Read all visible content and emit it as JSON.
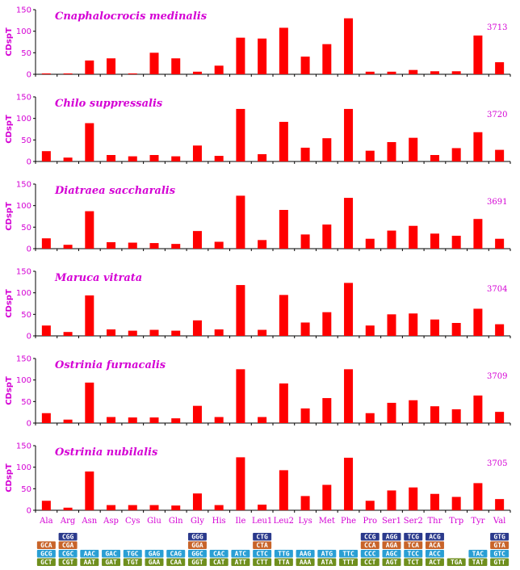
{
  "chart_data": {
    "type": "bar",
    "ylabel": "CDspT",
    "ylim": [
      0,
      150
    ],
    "yticks": [
      0,
      50,
      100,
      150
    ],
    "bar_color": "#ff0000",
    "label_color": "#d400d4",
    "categories": [
      "Ala",
      "Arg",
      "Asn",
      "Asp",
      "Cys",
      "Glu",
      "Gln",
      "Gly",
      "His",
      "Ile",
      "Leu1",
      "Leu2",
      "Lys",
      "Met",
      "Phe",
      "Pro",
      "Ser1",
      "Ser2",
      "Thr",
      "Trp",
      "Tyr",
      "Val"
    ],
    "panels": [
      {
        "title": "Cnaphalocrocis medinalis",
        "count": "3713",
        "values": [
          2,
          2,
          32,
          37,
          2,
          50,
          37,
          6,
          20,
          85,
          83,
          108,
          41,
          70,
          130,
          6,
          6,
          10,
          7,
          7,
          90,
          28
        ]
      },
      {
        "title": "Chilo suppressalis",
        "count": "3720",
        "values": [
          24,
          9,
          89,
          15,
          12,
          15,
          12,
          37,
          13,
          122,
          17,
          92,
          32,
          54,
          122,
          25,
          45,
          55,
          15,
          31,
          68,
          27
        ]
      },
      {
        "title": "Diatraea saccharalis",
        "count": "3691",
        "values": [
          24,
          9,
          87,
          15,
          14,
          13,
          11,
          41,
          16,
          123,
          20,
          90,
          33,
          56,
          118,
          23,
          42,
          53,
          35,
          30,
          69,
          23
        ]
      },
      {
        "title": "Maruca vitrata",
        "count": "3704",
        "values": [
          24,
          9,
          94,
          15,
          12,
          14,
          12,
          36,
          15,
          118,
          14,
          95,
          31,
          55,
          123,
          24,
          50,
          52,
          38,
          30,
          63,
          27
        ]
      },
      {
        "title": "Ostrinia furnacalis",
        "count": "3709",
        "values": [
          23,
          8,
          94,
          14,
          13,
          13,
          11,
          40,
          14,
          125,
          14,
          92,
          34,
          58,
          125,
          23,
          47,
          53,
          39,
          32,
          64,
          26
        ]
      },
      {
        "title": "Ostrinia nubilalis",
        "count": "3705",
        "values": [
          22,
          6,
          90,
          12,
          12,
          12,
          11,
          39,
          12,
          123,
          13,
          93,
          33,
          59,
          122,
          22,
          46,
          53,
          38,
          31,
          63,
          26
        ]
      }
    ]
  },
  "codon_table": {
    "colors": {
      "row0": "#2b3a8c",
      "row1": "#c8642a",
      "row2": "#2a9fd4",
      "row3": "#6f8f1e"
    },
    "columns": [
      [
        null,
        "GCA",
        "GCG",
        "GCT"
      ],
      [
        "CGG",
        "CGA",
        "CGC",
        "CGT"
      ],
      [
        null,
        null,
        "AAC",
        "AAT"
      ],
      [
        null,
        null,
        "GAC",
        "GAT"
      ],
      [
        null,
        null,
        "TGC",
        "TGT"
      ],
      [
        null,
        null,
        "GAG",
        "GAA"
      ],
      [
        null,
        null,
        "CAG",
        "CAA"
      ],
      [
        "GGG",
        "GGA",
        "GGC",
        "GGT"
      ],
      [
        null,
        null,
        "CAC",
        "CAT"
      ],
      [
        null,
        null,
        "ATC",
        "ATT"
      ],
      [
        "CTG",
        "CTA",
        "CTC",
        "CTT"
      ],
      [
        null,
        null,
        "TTG",
        "TTA"
      ],
      [
        null,
        null,
        "AAG",
        "AAA"
      ],
      [
        null,
        null,
        "ATG",
        "ATA"
      ],
      [
        null,
        null,
        "TTC",
        "TTT"
      ],
      [
        "CCG",
        "CCA",
        "CCC",
        "CCT"
      ],
      [
        "AGG",
        "AGA",
        "AGC",
        "AGT"
      ],
      [
        "TCG",
        "TCA",
        "TCC",
        "TCT"
      ],
      [
        "ACG",
        "ACA",
        "ACC",
        "ACT"
      ],
      [
        null,
        null,
        null,
        "TGA"
      ],
      [
        null,
        null,
        "TAC",
        "TAT"
      ],
      [
        "GTG",
        "GTA",
        "GTC",
        "GTT"
      ]
    ]
  }
}
